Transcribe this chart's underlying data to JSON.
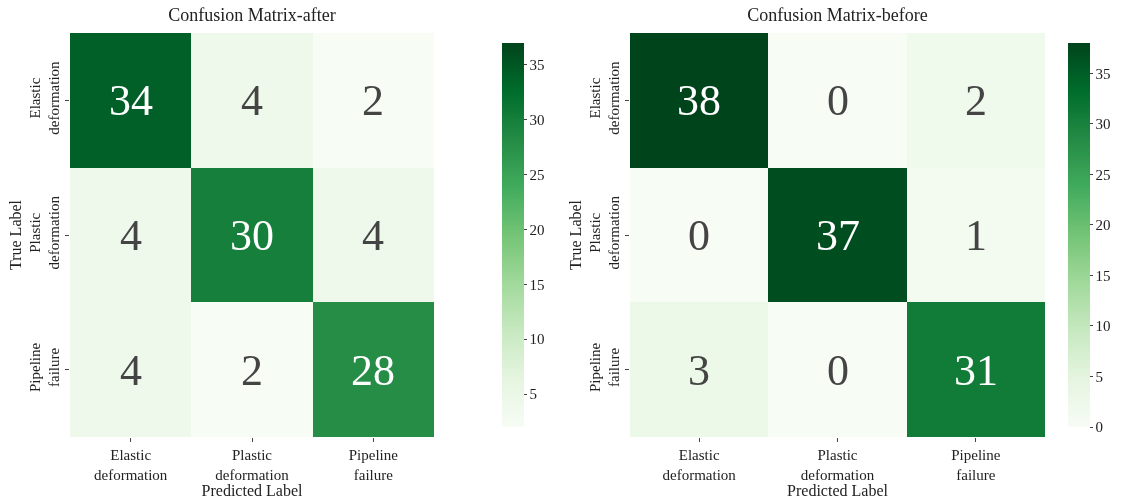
{
  "chart_data": [
    {
      "type": "heatmap",
      "title": "Confusion Matrix-after",
      "xlabel": "Predicted Label",
      "ylabel": "True Label",
      "categories": [
        "Elastic deformation",
        "Plastic deformation",
        "Pipeline failure"
      ],
      "y_categories": [
        "Elastic deformation",
        "Plastic deformation",
        "Pipeline failure"
      ],
      "cells": [
        [
          34,
          4,
          2
        ],
        [
          4,
          30,
          4
        ],
        [
          4,
          2,
          28
        ]
      ],
      "data_labels": true,
      "clim": [
        2,
        37
      ],
      "cticks": [
        5,
        10,
        15,
        20,
        25,
        30,
        35
      ]
    },
    {
      "type": "heatmap",
      "title": "Confusion Matrix-before",
      "xlabel": "Predicted Label",
      "ylabel": "True Label",
      "categories": [
        "Elastic deformation",
        "Plastic deformation",
        "Pipeline failure"
      ],
      "y_categories": [
        "Elastic deformation",
        "Plastic deformation",
        "Pipeline failure"
      ],
      "cells": [
        [
          38,
          0,
          2
        ],
        [
          0,
          37,
          1
        ],
        [
          3,
          0,
          31
        ]
      ],
      "data_labels": true,
      "clim": [
        0,
        38
      ],
      "cticks": [
        0,
        5,
        10,
        15,
        20,
        25,
        30,
        35
      ]
    }
  ]
}
